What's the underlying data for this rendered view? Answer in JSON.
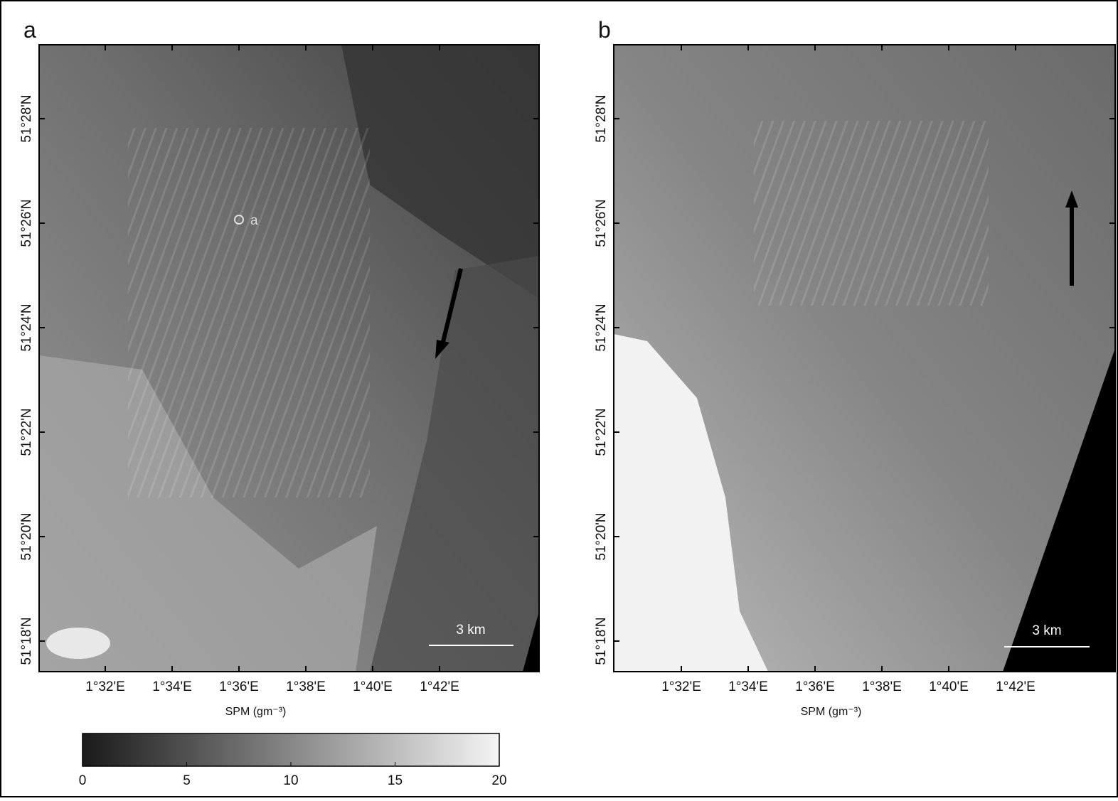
{
  "figure": {
    "panels": [
      {
        "label": "a",
        "yticks": [
          "51°28'N",
          "51°26'N",
          "51°24'N",
          "51°22'N",
          "51°20'N",
          "51°18'N"
        ],
        "xticks": [
          "1°32'E",
          "1°34'E",
          "1°36'E",
          "1°38'E",
          "1°40'E",
          "1°42'E"
        ],
        "xlabel": "SPM (gm⁻³)",
        "scale_bar": "3 km",
        "point_label": "a"
      },
      {
        "label": "b",
        "yticks": [
          "51°28'N",
          "51°26'N",
          "51°24'N",
          "51°22'N",
          "51°20'N",
          "51°18'N"
        ],
        "xticks": [
          "1°32'E",
          "1°34'E",
          "1°36'E",
          "1°38'E",
          "1°40'E",
          "1°42'E"
        ],
        "xlabel": "SPM (gm⁻³)",
        "scale_bar": "3 km"
      }
    ],
    "colorbar": {
      "lim": [
        0,
        20
      ],
      "ticks": [
        0,
        5,
        10,
        15,
        20
      ]
    }
  }
}
